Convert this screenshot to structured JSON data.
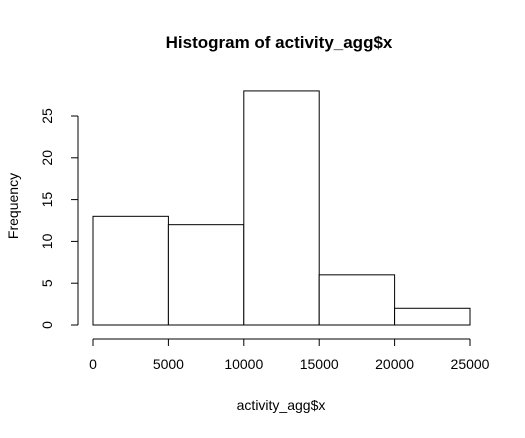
{
  "chart_data": {
    "type": "bar",
    "title": "Histogram of activity_agg$x",
    "xlabel": "activity_agg$x",
    "ylabel": "Frequency",
    "bins": [
      {
        "start": 0,
        "end": 5000,
        "count": 13
      },
      {
        "start": 5000,
        "end": 10000,
        "count": 12
      },
      {
        "start": 10000,
        "end": 15000,
        "count": 28
      },
      {
        "start": 15000,
        "end": 20000,
        "count": 6
      },
      {
        "start": 20000,
        "end": 25000,
        "count": 2
      }
    ],
    "xlim": [
      0,
      25000
    ],
    "ylim": [
      0,
      28
    ],
    "x_ticks": [
      0,
      5000,
      10000,
      15000,
      20000,
      25000
    ],
    "x_tick_labels": [
      "0",
      "5000",
      "10000",
      "15000",
      "20000",
      "25000"
    ],
    "y_ticks": [
      0,
      5,
      10,
      15,
      20,
      25
    ],
    "y_tick_labels": [
      "0",
      "5",
      "10",
      "15",
      "20",
      "25"
    ],
    "grid": false,
    "legend": "none",
    "bar_fill": "#ffffff",
    "bar_stroke": "#000000"
  }
}
